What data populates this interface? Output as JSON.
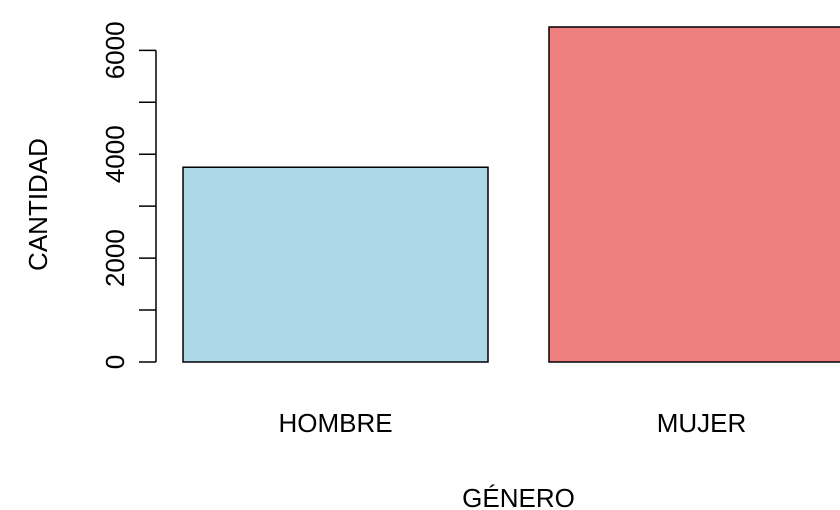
{
  "chart_data": {
    "type": "bar",
    "categories": [
      "HOMBRE",
      "MUJER"
    ],
    "values": [
      3750,
      6450
    ],
    "colors": [
      "#ADD8E6",
      "#F08080"
    ],
    "xlabel": "GÉNERO",
    "ylabel": "CANTIDAD",
    "ylim": [
      0,
      6450
    ],
    "yticks": [
      0,
      1000,
      2000,
      3000,
      4000,
      5000,
      6000
    ],
    "ytick_labels": [
      "0",
      "2000",
      "4000",
      "6000"
    ],
    "grid": false,
    "legend": "none"
  }
}
